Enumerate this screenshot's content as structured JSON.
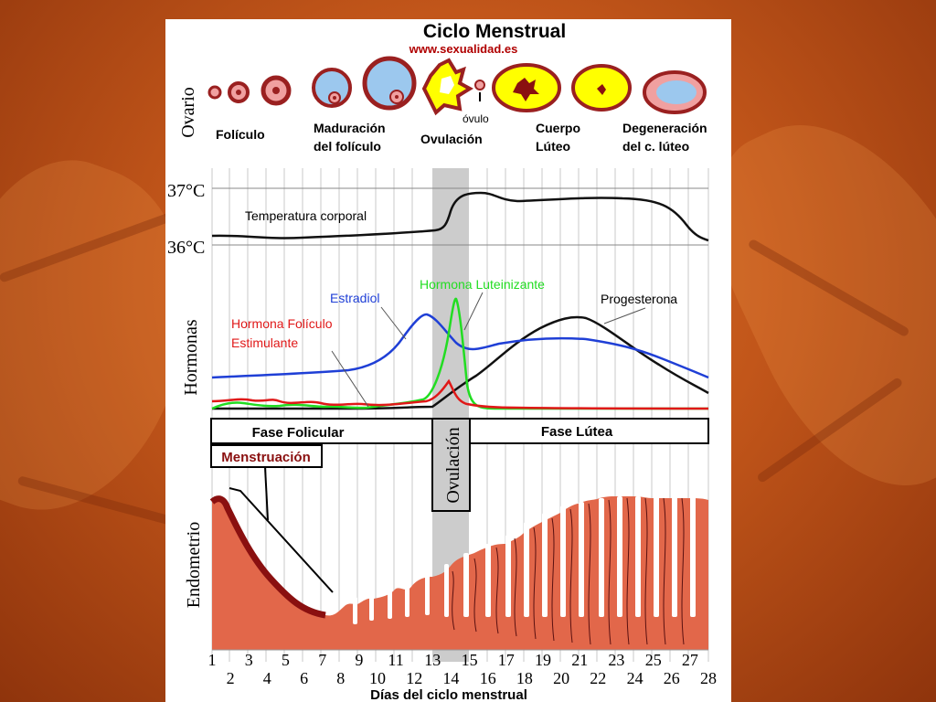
{
  "title": "Ciclo Menstrual",
  "source": "www.sexualidad.es",
  "sections": {
    "ovary": "Ovario",
    "hormones": "Hormonas",
    "endometrium": "Endometrio"
  },
  "ovary_stages": {
    "folicle": "Folículo",
    "maturation_1": "Maduración",
    "maturation_2": "del folículo",
    "ovulation": "Ovulación",
    "ovum": "óvulo",
    "luteum_1": "Cuerpo",
    "luteum_2": "Lúteo",
    "degeneration_1": "Degeneración",
    "degeneration_2": "del c. lúteo"
  },
  "temperature": {
    "t37": "37°C",
    "t36": "36°C",
    "label": "Temperatura corporal"
  },
  "hormone_labels": {
    "estradiol": "Estradiol",
    "lh": "Hormona Luteinizante",
    "progesterone": "Progesterona",
    "fsh_1": "Hormona Folículo",
    "fsh_2": "Estimulante"
  },
  "phases": {
    "follicular": "Fase Folicular",
    "luteal": "Fase Lútea",
    "menstruation": "Menstruación",
    "ovulation": "Ovulación"
  },
  "xaxis": {
    "days": [
      "1",
      "2",
      "3",
      "4",
      "5",
      "6",
      "7",
      "8",
      "9",
      "10",
      "11",
      "12",
      "13",
      "14",
      "15",
      "16",
      "17",
      "18",
      "19",
      "20",
      "21",
      "22",
      "23",
      "24",
      "25",
      "26",
      "27",
      "28"
    ],
    "label": "Días del ciclo menstrual"
  },
  "colors": {
    "estradiol": "#1f3fd6",
    "lh": "#22dd22",
    "progesterone": "#111111",
    "fsh": "#e01818",
    "endometrium": "#e2674a",
    "endometrium_dark": "#8a1010",
    "follicle_yellow": "#ffff00",
    "follicle_blue": "#9cc8ee",
    "follicle_rim": "#9a2020",
    "ovulation_band": "#c8c8c8"
  }
}
